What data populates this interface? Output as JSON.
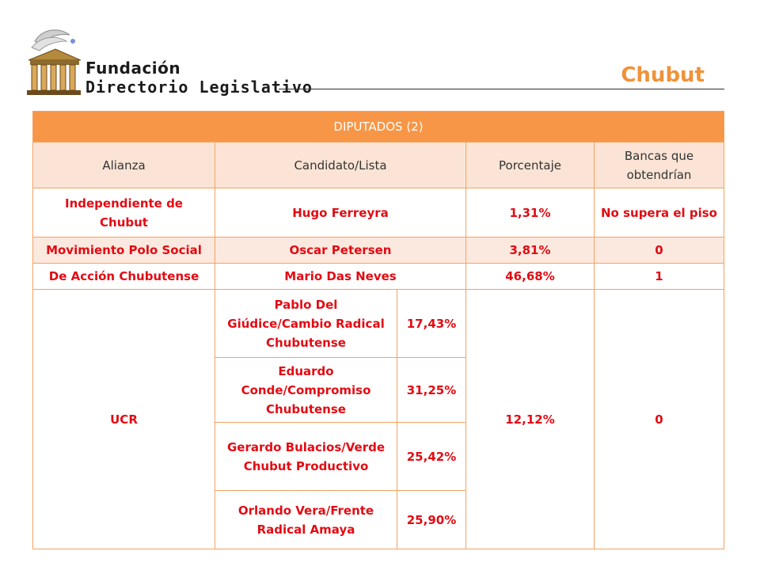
{
  "header": {
    "logo": {
      "line1": "Fundación",
      "line2": "Directorio Legislativo",
      "emblem_icon": "parliament-building-icon"
    },
    "title": "Chubut",
    "colors": {
      "accent": "#f0923a",
      "table_header": "#f79646",
      "highlight_red": "#e30b13",
      "row_tint": "#fbe9df"
    }
  },
  "table": {
    "title": "DIPUTADOS (2)",
    "columns": [
      "Alianza",
      "Candidato/Lista",
      "Porcentaje",
      "Bancas que obtendrían"
    ],
    "rows": [
      {
        "alianza": "Independiente de Chubut",
        "candidato": "Hugo Ferreyra",
        "porcentaje": "1,31%",
        "bancas": "No supera el piso"
      },
      {
        "alianza": "Movimiento Polo Social",
        "candidato": "Oscar Petersen",
        "porcentaje": "3,81%",
        "bancas": "0"
      },
      {
        "alianza": "De Acción Chubutense",
        "candidato": "Mario Das Neves",
        "porcentaje": "46,68%",
        "bancas": "1"
      }
    ],
    "ucr": {
      "alianza": "UCR",
      "total": "12,12%",
      "bancas": "0",
      "lists": [
        {
          "candidato": "Pablo Del Giúdice/Cambio Radical Chubutense",
          "porcentaje": "17,43%"
        },
        {
          "candidato": "Eduardo Conde/Compromiso Chubutense",
          "porcentaje": "31,25%"
        },
        {
          "candidato": "Gerardo Bulacios/Verde Chubut Productivo",
          "porcentaje": "25,42%"
        },
        {
          "candidato": "Orlando Vera/Frente Radical Amaya",
          "porcentaje": "25,90%"
        }
      ]
    }
  }
}
